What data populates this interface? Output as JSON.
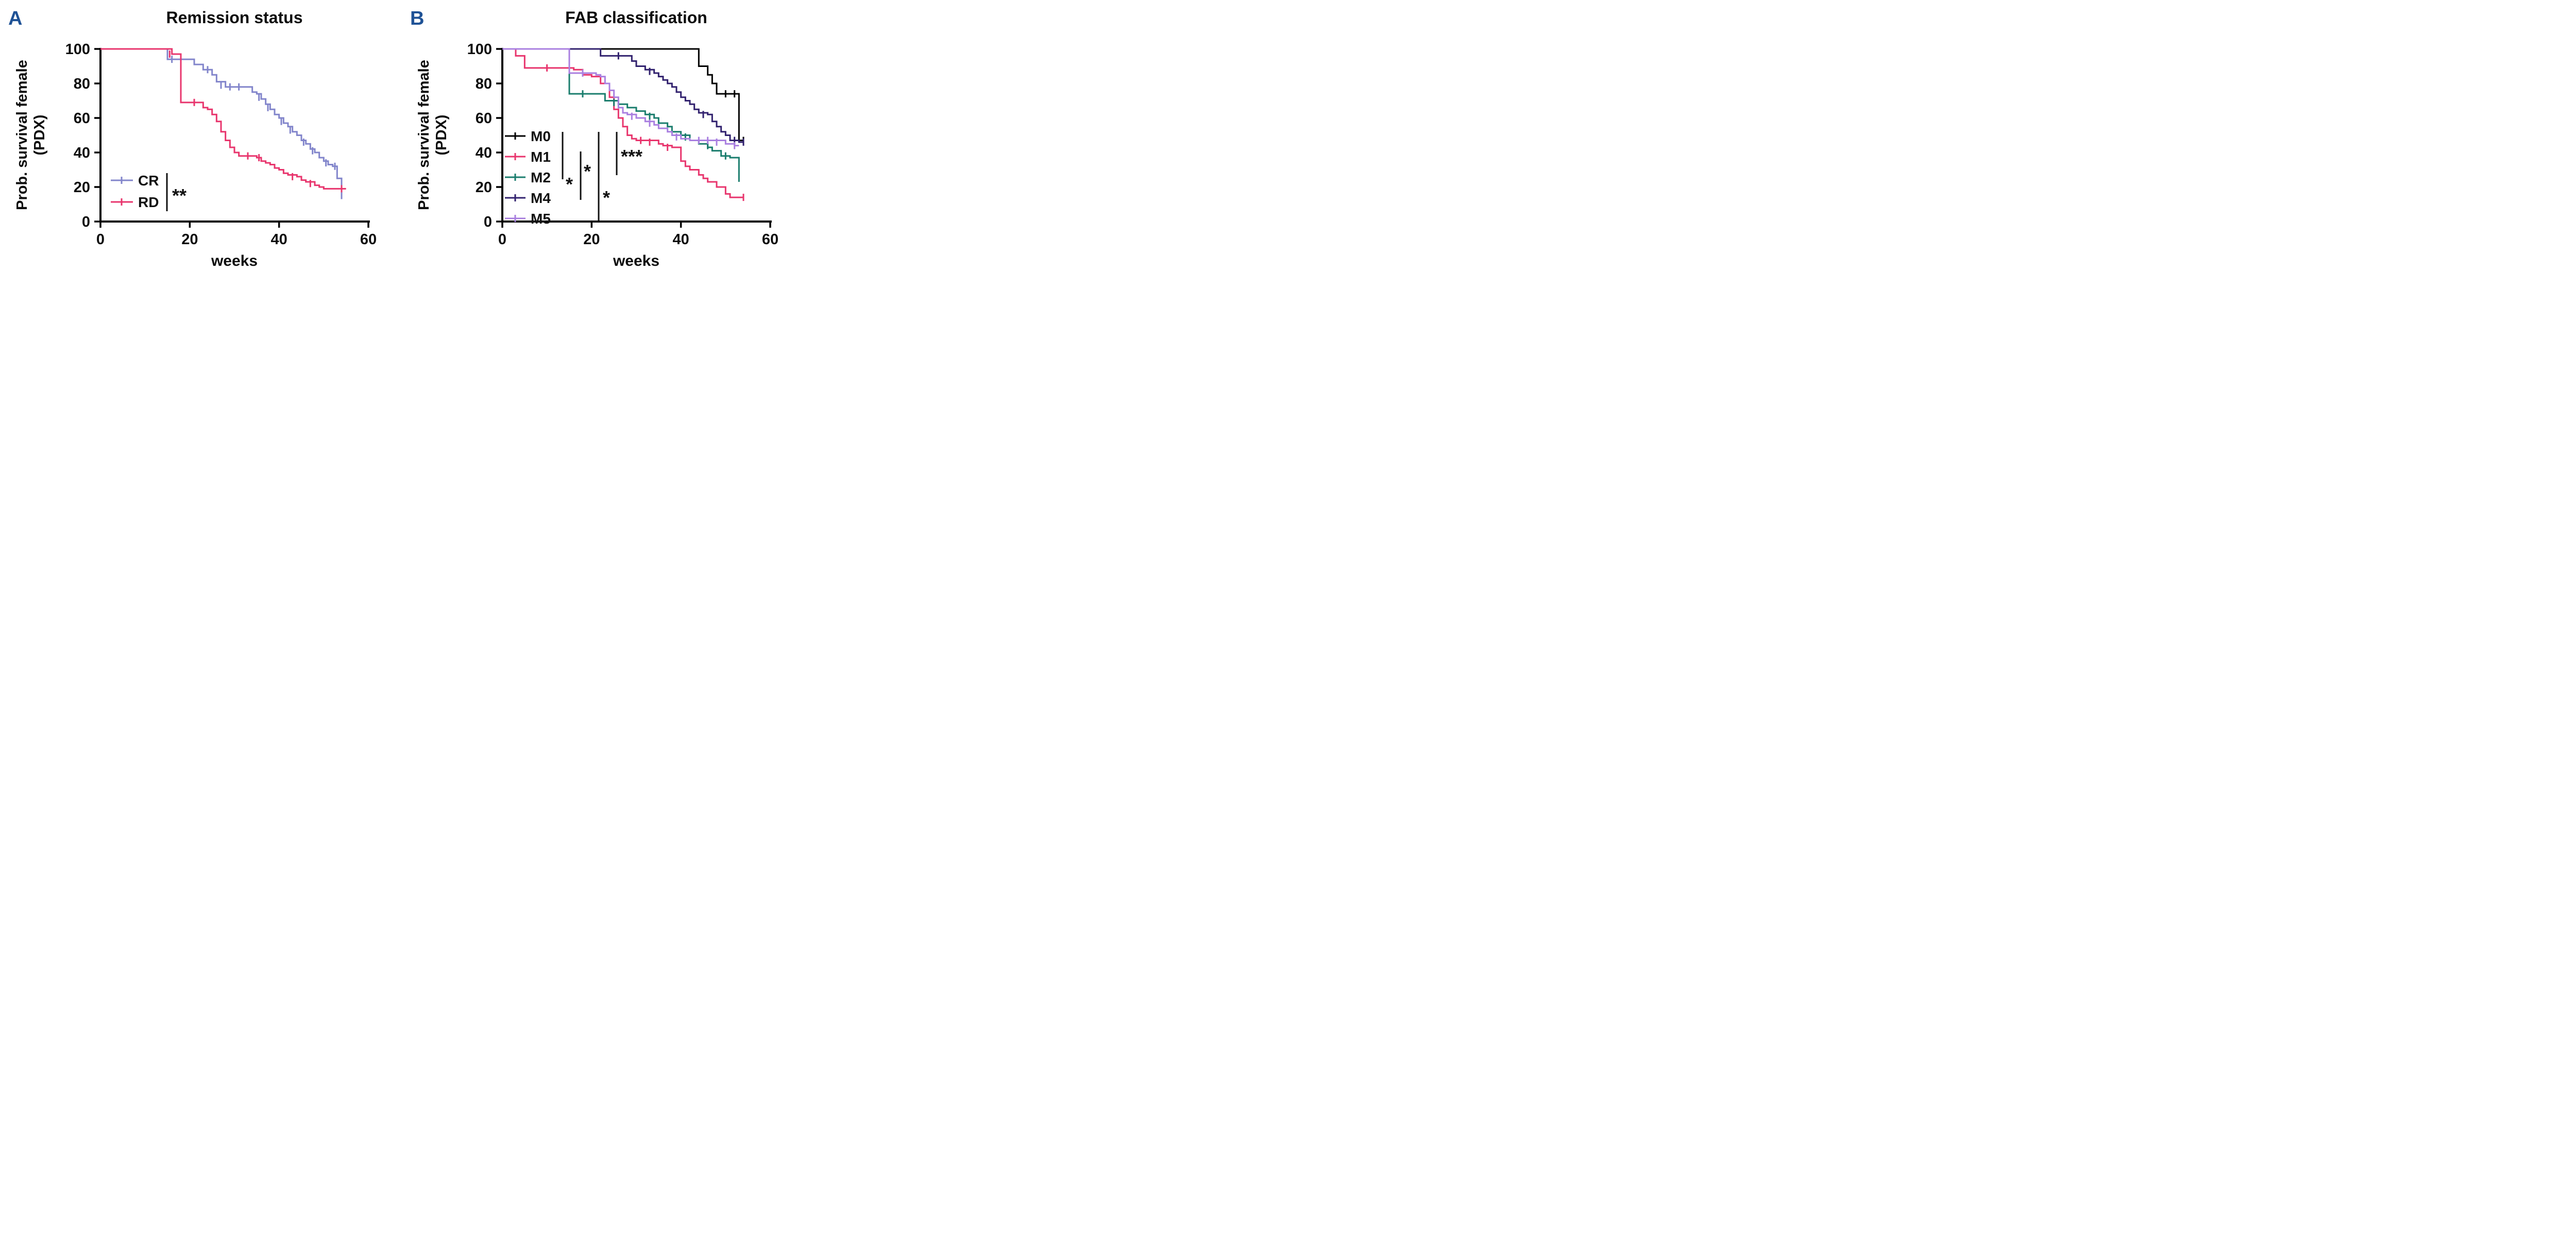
{
  "chart_data": [
    {
      "type": "line",
      "subtype": "kaplan-meier-step",
      "panel_letter": "A",
      "title": "Remission status",
      "xlabel": "weeks",
      "ylabel": "Prob. survival female (PDX)",
      "ylabel_line1": "Prob. survival female",
      "ylabel_line2": "(PDX)",
      "xlim": [
        0,
        60
      ],
      "ylim": [
        0,
        100
      ],
      "x_ticks": [
        0,
        20,
        40,
        60
      ],
      "y_ticks": [
        0,
        20,
        40,
        60,
        80,
        100
      ],
      "grid": false,
      "legend_position": "lower-left-inside",
      "significance": "**",
      "series": [
        {
          "name": "CR",
          "color": "#8285cb",
          "start": [
            0,
            100
          ],
          "steps": [
            [
              15,
              94
            ],
            [
              21,
              91
            ],
            [
              23,
              88
            ],
            [
              25,
              85
            ],
            [
              26,
              81
            ],
            [
              28,
              78
            ],
            [
              34,
              75
            ],
            [
              35,
              74
            ],
            [
              36,
              71
            ],
            [
              37,
              68
            ],
            [
              38,
              65
            ],
            [
              39,
              62
            ],
            [
              40,
              60
            ],
            [
              41,
              57
            ],
            [
              42,
              55
            ],
            [
              43,
              52
            ],
            [
              44,
              50
            ],
            [
              45,
              47
            ],
            [
              46,
              45
            ],
            [
              47,
              42
            ],
            [
              48,
              40
            ],
            [
              49,
              37
            ],
            [
              50,
              35
            ],
            [
              51,
              33
            ],
            [
              52,
              32
            ],
            [
              53,
              25
            ],
            [
              54,
              13
            ]
          ],
          "end_week": 54,
          "censor_marks": [
            [
              16,
              94
            ],
            [
              18,
              94
            ],
            [
              24,
              88
            ],
            [
              27,
              79
            ],
            [
              29,
              78
            ],
            [
              31,
              78
            ],
            [
              35.5,
              72
            ],
            [
              37.5,
              66
            ],
            [
              40.5,
              58
            ],
            [
              42.5,
              53
            ],
            [
              45.5,
              46
            ],
            [
              47.5,
              41
            ],
            [
              50.5,
              34
            ],
            [
              52.5,
              32
            ]
          ]
        },
        {
          "name": "RD",
          "color": "#e8356d",
          "start": [
            0,
            100
          ],
          "steps": [
            [
              16,
              97
            ],
            [
              18,
              69
            ],
            [
              23,
              66
            ],
            [
              24,
              65
            ],
            [
              25,
              62
            ],
            [
              26,
              58
            ],
            [
              27,
              52
            ],
            [
              28,
              47
            ],
            [
              29,
              43
            ],
            [
              30,
              40
            ],
            [
              31,
              38
            ],
            [
              35,
              37
            ],
            [
              36,
              35
            ],
            [
              37,
              34
            ],
            [
              38,
              33
            ],
            [
              39,
              31
            ],
            [
              40,
              30
            ],
            [
              41,
              28
            ],
            [
              42,
              27
            ],
            [
              44,
              26
            ],
            [
              45,
              24
            ],
            [
              46,
              23
            ],
            [
              48,
              21
            ],
            [
              49,
              20
            ],
            [
              50,
              19
            ]
          ],
          "end_week": 55,
          "censor_marks": [
            [
              15.5,
              97
            ],
            [
              21,
              69
            ],
            [
              33,
              38
            ],
            [
              35.5,
              37
            ],
            [
              43,
              26
            ],
            [
              47,
              22
            ],
            [
              54,
              19
            ]
          ]
        }
      ]
    },
    {
      "type": "line",
      "subtype": "kaplan-meier-step",
      "panel_letter": "B",
      "title": "FAB classification",
      "xlabel": "weeks",
      "ylabel": "Prob. survival female (PDX)",
      "ylabel_line1": "Prob. survival female",
      "ylabel_line2": "(PDX)",
      "xlim": [
        0,
        60
      ],
      "ylim": [
        0,
        100
      ],
      "x_ticks": [
        0,
        20,
        40,
        60
      ],
      "y_ticks": [
        0,
        20,
        40,
        60,
        80,
        100
      ],
      "grid": false,
      "legend_position": "lower-left-inside",
      "significance_brackets": [
        "*",
        "*",
        "*",
        "***"
      ],
      "series": [
        {
          "name": "M0",
          "color": "#000000",
          "start": [
            0,
            100
          ],
          "steps": [
            [
              44,
              90
            ],
            [
              46,
              85
            ],
            [
              47,
              80
            ],
            [
              48,
              74
            ],
            [
              53,
              47
            ]
          ],
          "end_week": 54,
          "censor_marks": [
            [
              50,
              74
            ],
            [
              52,
              74
            ],
            [
              54,
              47
            ]
          ]
        },
        {
          "name": "M1",
          "color": "#e8356d",
          "start": [
            0,
            100
          ],
          "steps": [
            [
              3,
              96
            ],
            [
              5,
              89
            ],
            [
              16,
              88
            ],
            [
              18,
              85
            ],
            [
              20,
              84
            ],
            [
              22,
              80
            ],
            [
              24,
              72
            ],
            [
              25,
              65
            ],
            [
              26,
              60
            ],
            [
              27,
              55
            ],
            [
              28,
              50
            ],
            [
              29,
              48
            ],
            [
              30,
              47
            ],
            [
              35,
              45
            ],
            [
              36,
              44
            ],
            [
              38,
              43
            ],
            [
              40,
              35
            ],
            [
              41,
              32
            ],
            [
              42,
              30
            ],
            [
              44,
              27
            ],
            [
              45,
              25
            ],
            [
              46,
              23
            ],
            [
              48,
              20
            ],
            [
              50,
              16
            ],
            [
              51,
              14
            ]
          ],
          "end_week": 54,
          "censor_marks": [
            [
              10,
              89
            ],
            [
              31,
              47
            ],
            [
              33,
              46
            ],
            [
              37,
              43
            ],
            [
              54,
              14
            ]
          ]
        },
        {
          "name": "M2",
          "color": "#1a7d6d",
          "start": [
            0,
            100
          ],
          "steps": [
            [
              15,
              74
            ],
            [
              23,
              70
            ],
            [
              26,
              68
            ],
            [
              28,
              66
            ],
            [
              30,
              64
            ],
            [
              32,
              62
            ],
            [
              34,
              60
            ],
            [
              35,
              57
            ],
            [
              37,
              55
            ],
            [
              38,
              52
            ],
            [
              40,
              50
            ],
            [
              42,
              47
            ],
            [
              44,
              45
            ],
            [
              46,
              43
            ],
            [
              47,
              41
            ],
            [
              49,
              38
            ],
            [
              51,
              37
            ],
            [
              53,
              23
            ]
          ],
          "end_week": 53,
          "censor_marks": [
            [
              18,
              74
            ],
            [
              25,
              69
            ],
            [
              33,
              61
            ],
            [
              41,
              49
            ],
            [
              46,
              44
            ],
            [
              50,
              38
            ]
          ]
        },
        {
          "name": "M4",
          "color": "#31216e",
          "start": [
            0,
            100
          ],
          "steps": [
            [
              22,
              96
            ],
            [
              29,
              93
            ],
            [
              30,
              90
            ],
            [
              32,
              88
            ],
            [
              34,
              86
            ],
            [
              35,
              84
            ],
            [
              36,
              82
            ],
            [
              37,
              80
            ],
            [
              38,
              78
            ],
            [
              39,
              75
            ],
            [
              40,
              72
            ],
            [
              41,
              70
            ],
            [
              42,
              68
            ],
            [
              43,
              65
            ],
            [
              44,
              63
            ],
            [
              46,
              62
            ],
            [
              47,
              58
            ],
            [
              48,
              55
            ],
            [
              49,
              52
            ],
            [
              50,
              50
            ],
            [
              51,
              47
            ],
            [
              53,
              46
            ]
          ],
          "end_week": 54,
          "censor_marks": [
            [
              26,
              96
            ],
            [
              33,
              87
            ],
            [
              45,
              62
            ],
            [
              52,
              47
            ],
            [
              54,
              46
            ]
          ]
        },
        {
          "name": "M5",
          "color": "#a97fe0",
          "start": [
            0,
            100
          ],
          "steps": [
            [
              15,
              86
            ],
            [
              21,
              85
            ],
            [
              22,
              84
            ],
            [
              23,
              80
            ],
            [
              24,
              76
            ],
            [
              25,
              72
            ],
            [
              26,
              66
            ],
            [
              27,
              63
            ],
            [
              28,
              62
            ],
            [
              30,
              60
            ],
            [
              32,
              58
            ],
            [
              34,
              56
            ],
            [
              35,
              54
            ],
            [
              37,
              52
            ],
            [
              38,
              50
            ],
            [
              40,
              48
            ],
            [
              42,
              47
            ],
            [
              50,
              45
            ],
            [
              52,
              44
            ]
          ],
          "end_week": 53,
          "censor_marks": [
            [
              18,
              86
            ],
            [
              29,
              61
            ],
            [
              33,
              57
            ],
            [
              39,
              49
            ],
            [
              44,
              47
            ],
            [
              46,
              47
            ],
            [
              48,
              46
            ],
            [
              52,
              44
            ]
          ]
        }
      ]
    }
  ]
}
